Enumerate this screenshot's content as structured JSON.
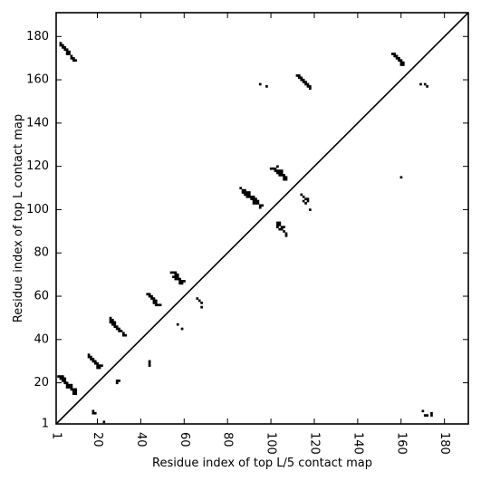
{
  "chart_data": {
    "type": "heatmap",
    "title": "",
    "xlabel": "Residue index of top L/5 contact map",
    "ylabel": "Residue index of top L contact map",
    "xlim": [
      1,
      191
    ],
    "ylim": [
      1,
      191
    ],
    "x_ticks": [
      1,
      20,
      40,
      60,
      80,
      100,
      120,
      140,
      160,
      180
    ],
    "x_tick_labels": [
      "1",
      "20",
      "40",
      "60",
      "80",
      "100",
      "120",
      "140",
      "160",
      "180"
    ],
    "y_ticks": [
      1,
      20,
      40,
      60,
      80,
      100,
      120,
      140,
      160,
      180
    ],
    "y_tick_labels": [
      "1",
      "20",
      "40",
      "60",
      "80",
      "100",
      "120",
      "140",
      "160",
      "180"
    ],
    "diagonal": true,
    "mark_color": "#000000",
    "upper_contacts": [
      [
        3,
        177
      ],
      [
        3,
        176
      ],
      [
        4,
        176
      ],
      [
        4,
        175
      ],
      [
        5,
        175
      ],
      [
        5,
        174
      ],
      [
        6,
        174
      ],
      [
        6,
        173
      ],
      [
        7,
        173
      ],
      [
        6,
        172
      ],
      [
        7,
        172
      ],
      [
        8,
        171
      ],
      [
        8,
        170
      ],
      [
        9,
        170
      ],
      [
        9,
        169
      ],
      [
        10,
        169
      ],
      [
        54,
        71
      ],
      [
        55,
        71
      ],
      [
        56,
        71
      ],
      [
        56,
        70
      ],
      [
        57,
        70
      ],
      [
        55,
        69
      ],
      [
        56,
        69
      ],
      [
        57,
        69
      ],
      [
        56,
        68
      ],
      [
        57,
        68
      ],
      [
        58,
        68
      ],
      [
        58,
        67
      ],
      [
        59,
        67
      ],
      [
        58,
        66
      ],
      [
        59,
        66
      ],
      [
        60,
        67
      ],
      [
        43,
        61
      ],
      [
        44,
        61
      ],
      [
        44,
        60
      ],
      [
        45,
        60
      ],
      [
        45,
        59
      ],
      [
        46,
        59
      ],
      [
        46,
        58
      ],
      [
        47,
        58
      ],
      [
        46,
        57
      ],
      [
        47,
        57
      ],
      [
        47,
        56
      ],
      [
        48,
        56
      ],
      [
        49,
        56
      ],
      [
        57,
        47
      ],
      [
        59,
        45
      ],
      [
        66,
        59
      ],
      [
        67,
        58
      ],
      [
        68,
        57
      ],
      [
        68,
        55
      ],
      [
        44,
        30
      ],
      [
        44,
        29
      ],
      [
        44,
        28
      ],
      [
        26,
        50
      ],
      [
        26,
        49
      ],
      [
        27,
        49
      ],
      [
        26,
        48
      ],
      [
        27,
        48
      ],
      [
        28,
        48
      ],
      [
        27,
        47
      ],
      [
        28,
        47
      ],
      [
        28,
        46
      ],
      [
        29,
        46
      ],
      [
        29,
        45
      ],
      [
        30,
        45
      ],
      [
        30,
        44
      ],
      [
        31,
        44
      ],
      [
        32,
        43
      ],
      [
        32,
        42
      ],
      [
        33,
        42
      ],
      [
        16,
        33
      ],
      [
        16,
        32
      ],
      [
        17,
        32
      ],
      [
        17,
        31
      ],
      [
        18,
        31
      ],
      [
        18,
        30
      ],
      [
        19,
        30
      ],
      [
        19,
        29
      ],
      [
        20,
        29
      ],
      [
        20,
        28
      ],
      [
        21,
        28
      ],
      [
        22,
        28
      ],
      [
        20,
        27
      ],
      [
        21,
        27
      ],
      [
        29,
        21
      ],
      [
        30,
        21
      ],
      [
        29,
        20
      ],
      [
        2,
        23
      ],
      [
        3,
        23
      ],
      [
        4,
        23
      ],
      [
        3,
        22
      ],
      [
        4,
        22
      ],
      [
        5,
        22
      ],
      [
        4,
        21
      ],
      [
        5,
        21
      ],
      [
        5,
        20
      ],
      [
        6,
        20
      ],
      [
        6,
        19
      ],
      [
        7,
        19
      ],
      [
        8,
        19
      ],
      [
        6,
        18
      ],
      [
        7,
        18
      ],
      [
        8,
        18
      ],
      [
        8,
        17
      ],
      [
        9,
        17
      ],
      [
        10,
        17
      ],
      [
        9,
        16
      ],
      [
        10,
        16
      ],
      [
        9,
        15
      ],
      [
        10,
        15
      ],
      [
        18,
        7
      ],
      [
        18,
        6
      ],
      [
        19,
        6
      ],
      [
        23,
        2
      ],
      [
        86,
        110
      ],
      [
        87,
        109
      ],
      [
        88,
        109
      ],
      [
        87,
        108
      ],
      [
        88,
        108
      ],
      [
        89,
        108
      ],
      [
        90,
        108
      ],
      [
        88,
        107
      ],
      [
        89,
        107
      ],
      [
        90,
        107
      ],
      [
        91,
        106
      ],
      [
        89,
        106
      ],
      [
        90,
        106
      ],
      [
        92,
        106
      ],
      [
        91,
        105
      ],
      [
        92,
        105
      ],
      [
        93,
        105
      ],
      [
        92,
        104
      ],
      [
        93,
        104
      ],
      [
        94,
        104
      ],
      [
        92,
        103
      ],
      [
        93,
        103
      ],
      [
        94,
        103
      ],
      [
        95,
        102
      ],
      [
        96,
        102
      ],
      [
        95,
        101
      ],
      [
        100,
        119
      ],
      [
        101,
        119
      ],
      [
        102,
        119
      ],
      [
        103,
        120
      ],
      [
        102,
        118
      ],
      [
        103,
        118
      ],
      [
        104,
        118
      ],
      [
        105,
        118
      ],
      [
        103,
        117
      ],
      [
        104,
        117
      ],
      [
        105,
        117
      ],
      [
        104,
        116
      ],
      [
        105,
        116
      ],
      [
        106,
        116
      ],
      [
        106,
        115
      ],
      [
        107,
        115
      ],
      [
        106,
        114
      ],
      [
        107,
        114
      ],
      [
        103,
        94
      ],
      [
        104,
        94
      ],
      [
        103,
        93
      ],
      [
        104,
        93
      ],
      [
        103,
        92
      ],
      [
        105,
        92
      ],
      [
        106,
        92
      ],
      [
        104,
        91
      ],
      [
        105,
        91
      ],
      [
        106,
        90
      ],
      [
        107,
        89
      ],
      [
        107,
        88
      ],
      [
        114,
        107
      ],
      [
        115,
        106
      ],
      [
        116,
        105
      ],
      [
        117,
        105
      ],
      [
        115,
        104
      ],
      [
        117,
        104
      ],
      [
        116,
        103
      ],
      [
        118,
        100
      ],
      [
        112,
        162
      ],
      [
        113,
        162
      ],
      [
        113,
        161
      ],
      [
        114,
        161
      ],
      [
        114,
        160
      ],
      [
        115,
        160
      ],
      [
        115,
        159
      ],
      [
        116,
        159
      ],
      [
        116,
        158
      ],
      [
        117,
        158
      ],
      [
        117,
        157
      ],
      [
        118,
        157
      ],
      [
        118,
        156
      ],
      [
        95,
        158
      ],
      [
        98,
        157
      ],
      [
        156,
        172
      ],
      [
        157,
        172
      ],
      [
        157,
        171
      ],
      [
        158,
        171
      ],
      [
        158,
        170
      ],
      [
        159,
        170
      ],
      [
        159,
        169
      ],
      [
        160,
        169
      ],
      [
        160,
        168
      ],
      [
        161,
        168
      ],
      [
        160,
        167
      ],
      [
        161,
        167
      ],
      [
        169,
        158
      ],
      [
        171,
        158
      ],
      [
        172,
        157
      ],
      [
        160,
        115
      ],
      [
        170,
        7
      ],
      [
        171,
        5
      ],
      [
        172,
        5
      ],
      [
        174,
        6
      ],
      [
        174,
        5
      ]
    ]
  }
}
